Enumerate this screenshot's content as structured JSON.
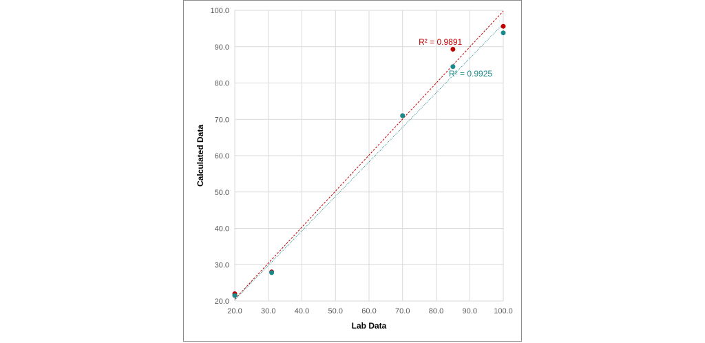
{
  "chart_data": {
    "type": "scatter",
    "title": "",
    "xlabel": "Lab Data",
    "ylabel": "Calculated Data",
    "xlim": [
      20,
      100
    ],
    "ylim": [
      20,
      100
    ],
    "x_ticks": [
      "20.0",
      "30.0",
      "40.0",
      "50.0",
      "60.0",
      "70.0",
      "80.0",
      "90.0",
      "100.0"
    ],
    "y_ticks": [
      "20.0",
      "30.0",
      "40.0",
      "50.0",
      "60.0",
      "70.0",
      "80.0",
      "90.0",
      "100.0"
    ],
    "grid": true,
    "legend": "none",
    "series": [
      {
        "color": "#c00000",
        "points": [
          [
            20,
            22.0
          ],
          [
            31,
            28.0
          ],
          [
            70,
            71.0
          ],
          [
            85,
            89.3
          ],
          [
            100,
            95.6
          ]
        ],
        "trendline": {
          "type": "linear",
          "x": [
            20,
            100
          ],
          "y": [
            20.5,
            99.8
          ],
          "style": "dashed"
        },
        "r2_label": "R² = 0.9891"
      },
      {
        "color": "#1a8a8a",
        "points": [
          [
            20,
            21.5
          ],
          [
            31,
            27.8
          ],
          [
            70,
            71.0
          ],
          [
            85,
            84.5
          ],
          [
            100,
            93.8
          ]
        ],
        "trendline": {
          "type": "linear",
          "x": [
            20,
            100
          ],
          "y": [
            20.3,
            96.3
          ],
          "style": "dotted"
        },
        "r2_label": "R² = 0.9925"
      }
    ]
  }
}
